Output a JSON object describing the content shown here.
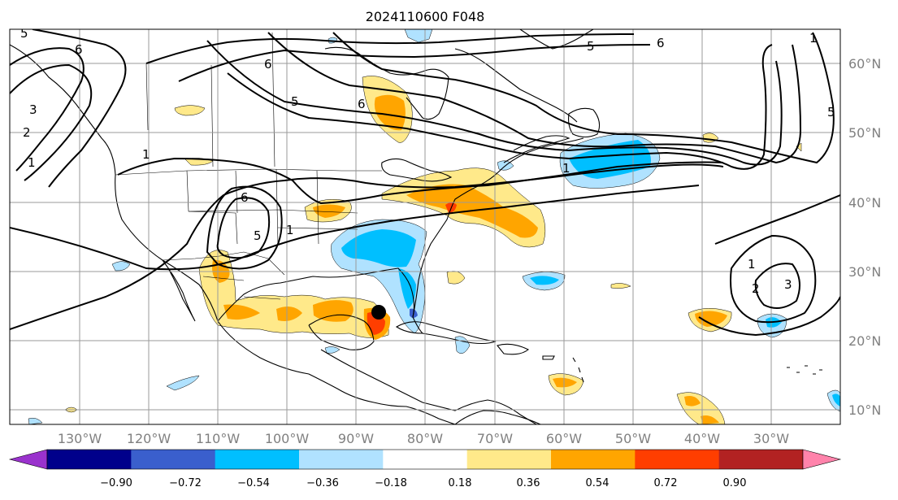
{
  "title": "2024110600 F048",
  "lon_labels": [
    "130°W",
    "120°W",
    "110°W",
    "100°W",
    "90°W",
    "80°W",
    "70°W",
    "60°W",
    "50°W",
    "40°W",
    "30°W"
  ],
  "lat_labels": [
    "60°N",
    "50°N",
    "40°N",
    "30°N",
    "20°N",
    "10°N"
  ],
  "colorbar": {
    "colors": [
      "#9a32cd",
      "#00008b",
      "#3a5fcd",
      "#00bfff",
      "#b0e2ff",
      "#ffffff",
      "#ffe98a",
      "#ffa500",
      "#ff3e00",
      "#b22222",
      "#ff83ab"
    ],
    "under_color": "#9a32cd",
    "over_color": "#ff83ab",
    "tick_labels": [
      "−0.90",
      "−0.72",
      "−0.54",
      "−0.36",
      "−0.18",
      "0.18",
      "0.36",
      "0.54",
      "0.72",
      "0.90"
    ]
  },
  "contour_labels": [
    "5",
    "6",
    "2",
    "3",
    "1",
    "6",
    "1",
    "5",
    "6",
    "1",
    "6",
    "5",
    "5",
    "1",
    "1",
    "2",
    "3",
    "6",
    "5",
    "1"
  ],
  "marker": {
    "lon": -86.5,
    "lat": 24.0,
    "label": "storm-center"
  },
  "colors": {
    "coast": "#000000",
    "grid": "#9a9a9a",
    "tick_text": "#808080"
  }
}
